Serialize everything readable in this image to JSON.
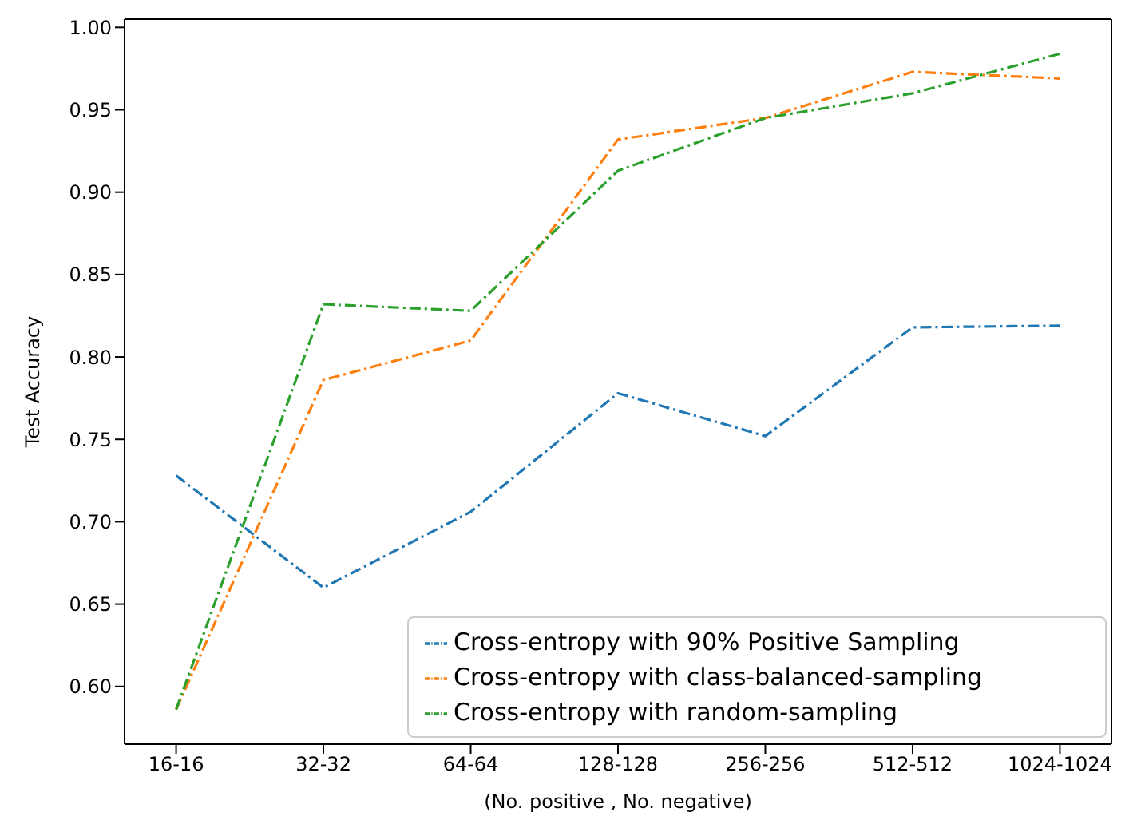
{
  "chart_data": {
    "type": "line",
    "xlabel": "(No. positive , No. negative)",
    "ylabel": "Test Accuracy",
    "categories": [
      "16-16",
      "32-32",
      "64-64",
      "128-128",
      "256-256",
      "512-512",
      "1024-1024"
    ],
    "series": [
      {
        "name": "Cross-entropy with 90% Positive Sampling",
        "color": "#1f77b4",
        "values": [
          0.728,
          0.66,
          0.706,
          0.778,
          0.752,
          0.818,
          0.819
        ]
      },
      {
        "name": "Cross-entropy with class-balanced-sampling",
        "color": "#ff7f0e",
        "values": [
          0.586,
          0.786,
          0.81,
          0.932,
          0.945,
          0.973,
          0.969
        ]
      },
      {
        "name": "Cross-entropy with random-sampling",
        "color": "#2ca02c",
        "values": [
          0.586,
          0.832,
          0.828,
          0.913,
          0.945,
          0.96,
          0.984
        ]
      }
    ],
    "ylim": [
      0.565,
      1.005
    ],
    "yticks": [
      {
        "value": 0.6,
        "label": "0.60"
      },
      {
        "value": 0.65,
        "label": "0.65"
      },
      {
        "value": 0.7,
        "label": "0.70"
      },
      {
        "value": 0.75,
        "label": "0.75"
      },
      {
        "value": 0.8,
        "label": "0.80"
      },
      {
        "value": 0.85,
        "label": "0.85"
      },
      {
        "value": 0.9,
        "label": "0.90"
      },
      {
        "value": 0.95,
        "label": "0.95"
      },
      {
        "value": 1.0,
        "label": "1.00"
      }
    ],
    "grid": false,
    "legend": "bottom right",
    "marker": "none",
    "line_style": "dashed"
  }
}
